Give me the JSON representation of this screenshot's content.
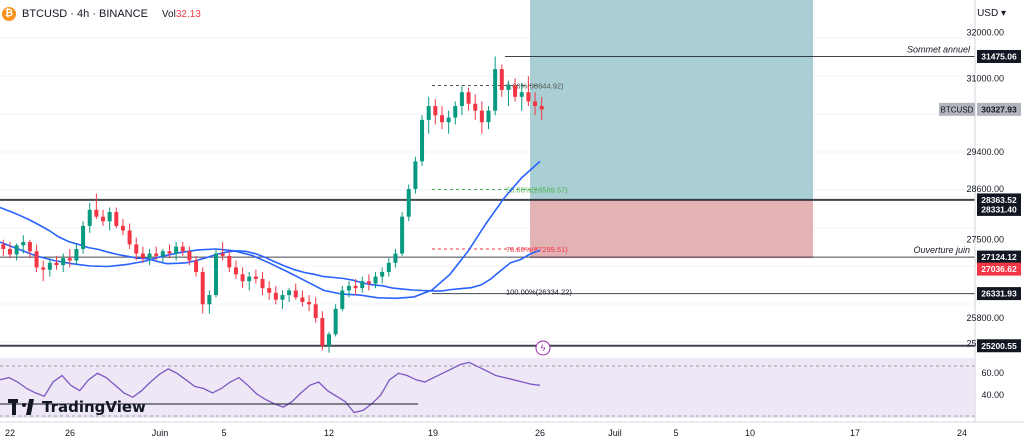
{
  "header": {
    "symbol": "BTCUSD · 4h · BINANCE",
    "vol_label": "Vol",
    "vol_value": "32.13",
    "currency": "USD"
  },
  "branding": {
    "name": "TradingView"
  },
  "chart_data": {
    "type": "candlestick",
    "price_range": [
      25000,
      32700
    ],
    "price_ticks": [
      "32000.00",
      "31000.00",
      "29400.00",
      "28600.00",
      "27500.00",
      "25800.00",
      "25250.00"
    ],
    "date_ticks": [
      "22",
      "26",
      "Juin",
      "5",
      "12",
      "19",
      "26",
      "Juil",
      "5",
      "10",
      "17",
      "24"
    ],
    "price_tags": [
      {
        "label": "31475.06",
        "value": 31475.06,
        "color": "#131722",
        "line": true,
        "note": "Sommet annuel"
      },
      {
        "label": "30327.93",
        "value": 30327.93,
        "color": "#b2b5be",
        "prefix": "BTCUSD",
        "line": false
      },
      {
        "label": "28363.52",
        "value": 28363.52,
        "color": "#131722",
        "line": true
      },
      {
        "label": "28331.40",
        "value": 28331.4,
        "color": "#131722",
        "line": false
      },
      {
        "label": "27124.12",
        "value": 27124.12,
        "color": "#131722",
        "line": true,
        "note": "Ouverture juin"
      },
      {
        "label": "27036.62",
        "value": 27036.62,
        "color": "#f23645",
        "line": false
      },
      {
        "label": "26331.93",
        "value": 26331.93,
        "color": "#131722",
        "line": true
      },
      {
        "label": "25200.55",
        "value": 25200.55,
        "color": "#131722",
        "line": true
      }
    ],
    "fib_levels": [
      {
        "label": "0.00%(30844.92)",
        "value": 30844.92,
        "color": "#555555"
      },
      {
        "label": "50.00%(28589.57)",
        "value": 28589.57,
        "color": "#4caf50"
      },
      {
        "label": "78.60%(27299.51)",
        "value": 27299.51,
        "color": "#f23645"
      },
      {
        "label": "100.00%(26334.22)",
        "value": 26334.22,
        "color": "#131722"
      }
    ],
    "moving_average_1": [
      28200,
      28120,
      28030,
      27930,
      27820,
      27700,
      27560,
      27460,
      27400,
      27330,
      27290,
      27230,
      27180,
      27140,
      27100,
      27090,
      27030,
      26980,
      26990,
      27000,
      27050,
      27110,
      27180,
      27230,
      27260,
      27250,
      27200,
      27120,
      27020,
      26930,
      26850,
      26790,
      26750,
      26700,
      26680,
      26660,
      26620,
      26560,
      26520,
      26500,
      26450,
      26430,
      26410,
      26400,
      26390,
      26390,
      26420,
      26440,
      26460,
      26520,
      26650,
      26830,
      27000,
      27070,
      27190,
      27270
    ],
    "moving_average_2": [
      27450,
      27300,
      27150,
      27050,
      26980,
      26930,
      26920,
      26960,
      27030,
      27140,
      27220,
      27280,
      27300,
      27260,
      27160,
      26990,
      26800,
      26600,
      26400,
      26320,
      26300,
      26240,
      26230,
      26260,
      26410,
      26750,
      27250,
      27850,
      28400,
      28850,
      29200
    ],
    "rsi": {
      "ticks": [
        "60.00",
        "40.00"
      ],
      "values": [
        60,
        62,
        58,
        52,
        48,
        45,
        58,
        64,
        55,
        50,
        60,
        66,
        62,
        55,
        48,
        44,
        50,
        58,
        65,
        70,
        66,
        60,
        54,
        52,
        48,
        52,
        58,
        62,
        55,
        47,
        42,
        38,
        35,
        40,
        48,
        55,
        58,
        50,
        45,
        40,
        30,
        32,
        38,
        46,
        60,
        66,
        64,
        60,
        58,
        62,
        66,
        70,
        74,
        76,
        72,
        68,
        64,
        62,
        60,
        58,
        56,
        55
      ]
    },
    "candles": [
      [
        27400,
        27500,
        27150,
        27300
      ],
      [
        27300,
        27450,
        27100,
        27180
      ],
      [
        27180,
        27420,
        27050,
        27380
      ],
      [
        27380,
        27600,
        27200,
        27450
      ],
      [
        27450,
        27500,
        27100,
        27250
      ],
      [
        27250,
        27400,
        26800,
        26900
      ],
      [
        26900,
        27050,
        26600,
        26850
      ],
      [
        26850,
        27100,
        26700,
        27000
      ],
      [
        27000,
        27150,
        26850,
        26950
      ],
      [
        26950,
        27200,
        26800,
        27100
      ],
      [
        27100,
        27300,
        26900,
        27050
      ],
      [
        27050,
        27400,
        26950,
        27300
      ],
      [
        27300,
        27900,
        27200,
        27800
      ],
      [
        27800,
        28300,
        27650,
        28150
      ],
      [
        28150,
        28500,
        27950,
        28000
      ],
      [
        28000,
        28150,
        27800,
        27900
      ],
      [
        27900,
        28200,
        27700,
        28100
      ],
      [
        28100,
        28200,
        27750,
        27800
      ],
      [
        27800,
        27950,
        27600,
        27700
      ],
      [
        27700,
        27850,
        27300,
        27400
      ],
      [
        27400,
        27550,
        27050,
        27200
      ],
      [
        27200,
        27350,
        27000,
        27100
      ],
      [
        27100,
        27300,
        26950,
        27200
      ],
      [
        27200,
        27350,
        27050,
        27150
      ],
      [
        27150,
        27300,
        27000,
        27250
      ],
      [
        27250,
        27400,
        27100,
        27200
      ],
      [
        27200,
        27450,
        27050,
        27350
      ],
      [
        27350,
        27450,
        27150,
        27250
      ],
      [
        27250,
        27350,
        26950,
        27050
      ],
      [
        27050,
        27150,
        26700,
        26800
      ],
      [
        26800,
        26900,
        25900,
        26100
      ],
      [
        26100,
        26400,
        25900,
        26300
      ],
      [
        26300,
        27300,
        26250,
        27200
      ],
      [
        27200,
        27450,
        27050,
        27150
      ],
      [
        27150,
        27250,
        26800,
        26900
      ],
      [
        26900,
        27050,
        26650,
        26750
      ],
      [
        26750,
        26900,
        26450,
        26600
      ],
      [
        26600,
        26800,
        26400,
        26700
      ],
      [
        26700,
        26850,
        26550,
        26650
      ],
      [
        26650,
        26800,
        26300,
        26450
      ],
      [
        26450,
        26600,
        26200,
        26350
      ],
      [
        26350,
        26500,
        26100,
        26200
      ],
      [
        26200,
        26400,
        26000,
        26300
      ],
      [
        26300,
        26450,
        26150,
        26400
      ],
      [
        26400,
        26550,
        26200,
        26250
      ],
      [
        26250,
        26400,
        26050,
        26150
      ],
      [
        26150,
        26300,
        25950,
        26100
      ],
      [
        26100,
        26250,
        25700,
        25800
      ],
      [
        25800,
        25950,
        25100,
        25200
      ],
      [
        25200,
        25500,
        25050,
        25450
      ],
      [
        25450,
        26100,
        25400,
        26000
      ],
      [
        26000,
        26500,
        25950,
        26400
      ],
      [
        26400,
        26600,
        26250,
        26500
      ],
      [
        26500,
        26650,
        26300,
        26450
      ],
      [
        26450,
        26700,
        26350,
        26600
      ],
      [
        26600,
        26750,
        26400,
        26550
      ],
      [
        26550,
        26800,
        26450,
        26700
      ],
      [
        26700,
        26900,
        26550,
        26800
      ],
      [
        26800,
        27100,
        26700,
        27000
      ],
      [
        27000,
        27300,
        26900,
        27200
      ],
      [
        27200,
        28100,
        27150,
        28000
      ],
      [
        28000,
        28700,
        27900,
        28600
      ],
      [
        28600,
        29300,
        28500,
        29200
      ],
      [
        29200,
        30200,
        29100,
        30100
      ],
      [
        30100,
        30600,
        29800,
        30400
      ],
      [
        30400,
        30550,
        30000,
        30200
      ],
      [
        30200,
        30400,
        29900,
        30050
      ],
      [
        30050,
        30300,
        29800,
        30150
      ],
      [
        30150,
        30500,
        30000,
        30400
      ],
      [
        30400,
        30844,
        30200,
        30700
      ],
      [
        30700,
        30800,
        30300,
        30450
      ],
      [
        30450,
        30650,
        30100,
        30300
      ],
      [
        30300,
        30500,
        29800,
        30050
      ],
      [
        30050,
        30400,
        29900,
        30300
      ],
      [
        30300,
        31475,
        30200,
        31200
      ],
      [
        31200,
        31300,
        30600,
        30750
      ],
      [
        30750,
        30950,
        30400,
        30850
      ],
      [
        30850,
        31000,
        30500,
        30600
      ],
      [
        30600,
        30900,
        30300,
        30700
      ],
      [
        30700,
        31050,
        30400,
        30500
      ],
      [
        30500,
        30700,
        30200,
        30400
      ],
      [
        30400,
        30600,
        30100,
        30327
      ]
    ],
    "position_tool": {
      "entry": 28363.52,
      "target_top": 32700,
      "stop": 27100
    }
  }
}
